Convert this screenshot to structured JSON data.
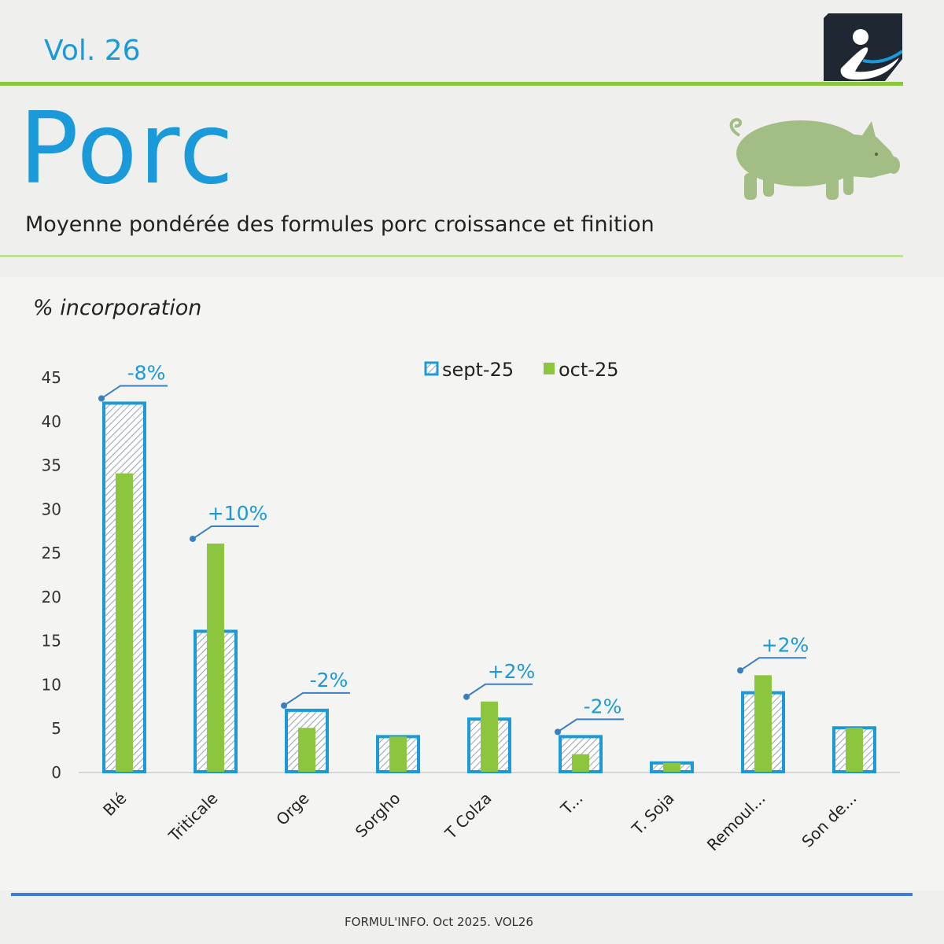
{
  "header": {
    "volume": "Vol. 26",
    "title": "Porc",
    "subtitle": "Moyenne pondérée des formules porc croissance et finition"
  },
  "icons": {
    "logo": "brand-logo-icon",
    "animal": "pig-icon"
  },
  "colors": {
    "blue": "#1a9ad9",
    "green": "#8cc63f",
    "annotation": "#3a7fc4",
    "footer_rule": "#3b7dd8"
  },
  "chart_data": {
    "type": "bar",
    "ylabel": "% incorporation",
    "ylim": [
      0,
      45
    ],
    "yticks": [
      0,
      5,
      10,
      15,
      20,
      25,
      30,
      35,
      40,
      45
    ],
    "legend_position": "top-center",
    "categories": [
      "Blé",
      "Triticale",
      "Orge",
      "Sorgho",
      "T Colza",
      "T...",
      "T. Soja",
      "Remoul...",
      "Son de..."
    ],
    "series": [
      {
        "name": "sept-25",
        "values": [
          42,
          16,
          7,
          4,
          6,
          4,
          1,
          9,
          5
        ],
        "style": "hatched-outline",
        "color": "#1a9ad9"
      },
      {
        "name": "oct-25",
        "values": [
          34,
          26,
          5,
          4,
          8,
          2,
          1,
          11,
          5
        ],
        "style": "solid",
        "color": "#8cc63f"
      }
    ],
    "annotations": [
      {
        "category": "Blé",
        "text": "-8%"
      },
      {
        "category": "Triticale",
        "text": "+10%"
      },
      {
        "category": "Orge",
        "text": "-2%"
      },
      {
        "category": "T Colza",
        "text": "+2%"
      },
      {
        "category": "T...",
        "text": "-2%"
      },
      {
        "category": "Remoul...",
        "text": "+2%"
      }
    ]
  },
  "footer": {
    "text": "FORMUL'INFO. Oct 2025. VOL26"
  }
}
